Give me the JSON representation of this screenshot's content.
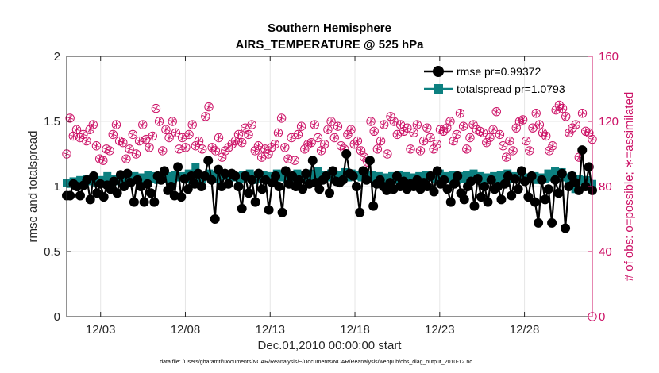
{
  "chart_data": {
    "type": "line",
    "title": "Southern Hemisphere",
    "subtitle": "AIRS_TEMPERATURE @ 525 hPa",
    "xlabel": "Dec.01,2010 00:00:00 start",
    "ylabel": "rmse and totalspread",
    "y2label": "# of obs: o=possible; ∗=assimilated",
    "footnote": "data file: /Users/gharamti/Documents/NCAR/Reanalysis/~/Documents/NCAR/Reanalysis/webpub/obs_diag_output_2010-12.nc",
    "xlim": [
      1.0,
      32.0
    ],
    "ylim": [
      0,
      2
    ],
    "y2lim": [
      0,
      160
    ],
    "x_ticks": [
      3,
      8,
      13,
      18,
      23,
      28
    ],
    "x_tick_labels": [
      "12/03",
      "12/08",
      "12/13",
      "12/18",
      "12/23",
      "12/28"
    ],
    "y_ticks": [
      0,
      0.5,
      1,
      1.5,
      2
    ],
    "y_tick_labels": [
      "0",
      "0.5",
      "1",
      "1.5",
      "2"
    ],
    "y2_ticks": [
      0,
      40,
      80,
      120,
      160
    ],
    "y2_tick_labels": [
      "0",
      "40",
      "80",
      "120",
      "160"
    ],
    "legend_position": "top-right",
    "series": [
      {
        "name": "rmse pr=0.99372",
        "color": "#000000",
        "marker": "circle",
        "axis": "left",
        "values": [
          0.93,
          0.93,
          1.02,
          1.0,
          0.93,
          1.01,
          1.05,
          0.9,
          1.08,
          0.95,
          1.02,
          0.92,
          1.01,
          0.98,
          1.04,
          0.95,
          1.09,
          1.0,
          1.1,
          1.03,
          0.88,
          1.05,
          1.0,
          0.88,
          1.02,
          0.95,
          0.88,
          1.08,
          1.05,
          1.12,
          0.97,
          1.0,
          0.93,
          1.15,
          0.92,
          1.06,
          0.98,
          1.08,
          1.02,
          1.1,
          1.0,
          1.08,
          1.2,
          1.05,
          0.75,
          1.13,
          1.0,
          1.1,
          1.02,
          1.1,
          1.08,
          1.0,
          0.83,
          1.08,
          0.95,
          1.05,
          0.88,
          1.1,
          0.98,
          1.05,
          0.82,
          1.03,
          1.08,
          1.0,
          0.8,
          1.12,
          1.02,
          1.08,
          1.0,
          1.05,
          0.98,
          1.1,
          1.02,
          1.2,
          1.03,
          0.98,
          1.05,
          1.08,
          0.95,
          1.12,
          1.04,
          1.03,
          1.05,
          1.25,
          1.1,
          1.08,
          1.0,
          0.8,
          1.12,
          1.05,
          1.2,
          0.85,
          1.02,
          1.05,
          1.0,
          0.97,
          1.03,
          0.98,
          1.08,
          1.0,
          1.04,
          0.98,
          1.02,
          1.0,
          1.05,
          0.98,
          1.03,
          1.0,
          1.08,
          0.96,
          1.12,
          1.02,
          1.05,
          0.98,
          0.88,
          1.02,
          1.08,
          0.95,
          0.9,
          1.0,
          1.04,
          0.85,
          1.06,
          0.92,
          1.0,
          0.88,
          1.05,
          0.98,
          1.0,
          0.9,
          1.02,
          1.08,
          0.93,
          1.06,
          0.98,
          1.12,
          1.04,
          0.92,
          1.08,
          0.88,
          0.72,
          1.05,
          0.9,
          0.98,
          0.72,
          1.05,
          0.95,
          1.1,
          0.68,
          1.0,
          1.08,
          1.03,
          0.97,
          1.28,
          1.0,
          1.15,
          0.97
        ]
      },
      {
        "name": "totalspread pr=1.0793",
        "color": "#0c8080",
        "marker": "square",
        "axis": "left",
        "values": [
          1.03,
          1.02,
          1.04,
          1.03,
          1.05,
          1.02,
          1.06,
          1.04,
          1.07,
          1.03,
          1.05,
          1.04,
          1.08,
          1.05,
          1.06,
          1.04,
          1.09,
          1.06,
          1.07,
          1.05,
          1.08,
          1.06,
          1.07,
          1.05,
          1.09,
          1.06,
          1.08,
          1.05,
          1.07,
          1.06,
          1.08,
          1.05,
          1.09,
          1.07,
          1.08,
          1.06,
          1.1,
          1.08,
          1.15,
          1.07,
          1.06,
          1.08,
          1.1,
          1.07,
          1.09,
          1.06,
          1.1,
          1.08,
          1.09,
          1.07,
          1.08,
          1.06,
          1.09,
          1.07,
          1.1,
          1.05,
          1.08,
          1.06,
          1.09,
          1.07,
          1.08,
          1.06,
          1.1,
          1.07,
          1.09,
          1.06,
          1.08,
          1.07,
          1.1,
          1.08,
          1.09,
          1.05,
          1.1,
          1.08,
          1.12,
          1.06,
          1.09,
          1.07,
          1.1,
          1.08,
          1.09,
          1.06,
          1.11,
          1.07,
          1.1,
          1.08,
          1.09,
          1.07,
          1.1,
          1.06,
          1.09,
          1.07,
          1.08,
          1.05,
          1.07,
          1.06,
          1.08,
          1.05,
          1.09,
          1.06,
          1.08,
          1.05,
          1.07,
          1.06,
          1.08,
          1.05,
          1.09,
          1.07,
          1.08,
          1.06,
          1.1,
          1.07,
          1.08,
          1.06,
          1.09,
          1.05,
          1.08,
          1.06,
          1.09,
          1.07,
          1.1,
          1.06,
          1.08,
          1.05,
          1.07,
          1.06,
          1.08,
          1.05,
          1.09,
          1.07,
          1.1,
          1.06,
          1.08,
          1.07,
          1.09,
          1.05,
          1.07,
          1.06,
          1.08,
          1.05,
          1.07,
          1.06,
          1.1,
          1.07,
          1.12,
          1.08,
          1.11,
          1.07,
          1.05,
          1.08,
          0.98,
          1.06,
          1.04,
          1.05,
          1.03,
          1.02
        ]
      },
      {
        "name": "obs possible",
        "color": "#cc1166",
        "marker": "circle-open",
        "axis": "right",
        "values": [
          100,
          122,
          111,
          115,
          110,
          112,
          108,
          115,
          118,
          105,
          97,
          96,
          103,
          102,
          112,
          118,
          108,
          107,
          97,
          103,
          112,
          100,
          108,
          118,
          109,
          104,
          111,
          128,
          120,
          102,
          115,
          110,
          120,
          113,
          103,
          110,
          104,
          112,
          118,
          105,
          108,
          103,
          123,
          129,
          104,
          102,
          110,
          98,
          102,
          104,
          106,
          108,
          112,
          107,
          116,
          112,
          118,
          102,
          105,
          98,
          103,
          100,
          104,
          106,
          113,
          122,
          104,
          97,
          110,
          96,
          112,
          117,
          103,
          106,
          107,
          118,
          110,
          102,
          106,
          115,
          120,
          110,
          117,
          105,
          103,
          112,
          115,
          106,
          108,
          102,
          98,
          95,
          120,
          114,
          103,
          108,
          118,
          100,
          123,
          120,
          112,
          118,
          114,
          116,
          103,
          113,
          118,
          102,
          108,
          116,
          110,
          103,
          106,
          115,
          114,
          116,
          120,
          108,
          112,
          125,
          117,
          103,
          110,
          118,
          115,
          114,
          113,
          107,
          110,
          115,
          126,
          112,
          105,
          98,
          108,
          102,
          116,
          120,
          121,
          108,
          102,
          116,
          125,
          118,
          113,
          111,
          102,
          105,
          127,
          130,
          128,
          123,
          113,
          116,
          118,
          98,
          125,
          114,
          113,
          109
        ]
      },
      {
        "name": "obs assimilated",
        "color": "#cc1166",
        "marker": "asterisk",
        "axis": "right",
        "values": [
          100,
          122,
          111,
          115,
          110,
          112,
          108,
          115,
          118,
          105,
          97,
          96,
          103,
          102,
          112,
          118,
          108,
          107,
          97,
          103,
          112,
          100,
          108,
          118,
          109,
          104,
          111,
          128,
          120,
          102,
          115,
          110,
          120,
          113,
          103,
          110,
          104,
          112,
          118,
          105,
          108,
          103,
          123,
          129,
          104,
          102,
          110,
          98,
          102,
          104,
          106,
          108,
          112,
          107,
          116,
          112,
          118,
          102,
          105,
          98,
          103,
          100,
          104,
          106,
          113,
          122,
          104,
          97,
          110,
          96,
          112,
          117,
          103,
          106,
          107,
          118,
          110,
          102,
          106,
          115,
          120,
          110,
          117,
          105,
          103,
          112,
          115,
          106,
          108,
          102,
          98,
          95,
          120,
          114,
          103,
          108,
          118,
          100,
          123,
          120,
          112,
          118,
          114,
          116,
          103,
          113,
          118,
          102,
          108,
          116,
          110,
          103,
          106,
          115,
          114,
          116,
          120,
          108,
          112,
          125,
          117,
          103,
          110,
          118,
          115,
          114,
          113,
          107,
          110,
          115,
          126,
          112,
          105,
          98,
          108,
          102,
          116,
          120,
          121,
          108,
          102,
          116,
          125,
          118,
          113,
          111,
          102,
          105,
          127,
          130,
          128,
          123,
          113,
          116,
          118,
          98,
          125,
          114,
          113,
          109
        ]
      }
    ]
  }
}
